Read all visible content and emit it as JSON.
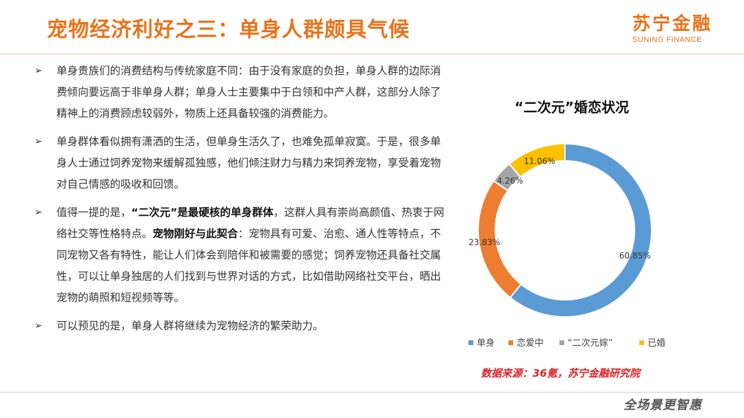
{
  "header": {
    "title": "宠物经济利好之三：单身人群颇具气候",
    "logo_cn": "苏宁金融",
    "logo_en": "SUNING FINANCE"
  },
  "bullets": [
    {
      "parts": [
        {
          "text": "单身贵族们的消费结构与传统家庭不同：由于没有家庭的负担，单身人群的边际消费倾向要远高于非单身人群；单身人士主要集中于白领和中产人群，这部分人除了精神上的消费顾虑较弱外，物质上还具备较强的消费能力。",
          "bold": false
        }
      ]
    },
    {
      "parts": [
        {
          "text": "单身群体看似拥有潇洒的生活，但单身生活久了，也难免孤单寂寞。于是，很多单身人士通过饲养宠物来缓解孤独感，他们倾注财力与精力来饲养宠物，享受着宠物对自己情感的吸收和回馈。",
          "bold": false
        }
      ]
    },
    {
      "parts": [
        {
          "text": "值得一提的是，",
          "bold": false
        },
        {
          "text": "“二次元”是最硬核的单身群体",
          "bold": true
        },
        {
          "text": "，这群人具有崇尚高颜值、热衷于网络社交等性格特点。",
          "bold": false
        },
        {
          "text": "宠物刚好与此契合",
          "bold": true
        },
        {
          "text": "：宠物具有可爱、治愈、通人性等特点，不同宠物又各有特性，能让人们体会到陪伴和被需要的感觉；饲养宠物还具备社交属性，可以让单身独居的人们找到与世界对话的方式，比如借助网络社交平台，晒出宠物的萌照和短视频等等。",
          "bold": false
        }
      ]
    },
    {
      "parts": [
        {
          "text": "可以预见的是，单身人群将继续为宠物经济的繁荣助力。",
          "bold": false
        }
      ]
    }
  ],
  "chart_data": {
    "type": "pie",
    "title": "“二次元”婚恋状况",
    "donut": true,
    "categories": [
      "单身",
      "恋爱中",
      "“二次元嫁”",
      "已婚"
    ],
    "values": [
      60.85,
      23.83,
      4.26,
      11.06
    ],
    "labels": [
      "60.85%",
      "23.83%",
      "4.26%",
      "11.06%"
    ],
    "colors": [
      "#5b9bd5",
      "#ed7d31",
      "#a5a5a5",
      "#ffc000"
    ],
    "legend": "bottom"
  },
  "source": "数据来源：36氪，苏宁金融研究院",
  "footer_logo": "全场景更智惠"
}
